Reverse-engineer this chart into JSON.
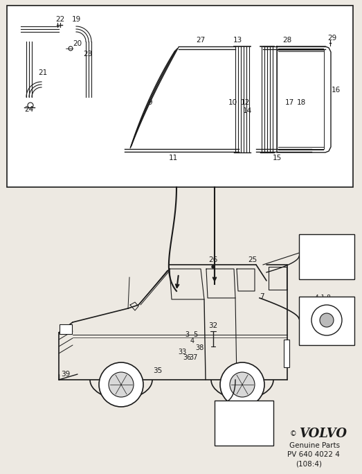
{
  "bg_color": "#ede9e2",
  "line_color": "#1a1a1a",
  "volvo_text": "VOLVO",
  "genuine_parts": "Genuine Parts",
  "pv_number": "PV 640 4022 4",
  "page_ref": "(108:4)"
}
